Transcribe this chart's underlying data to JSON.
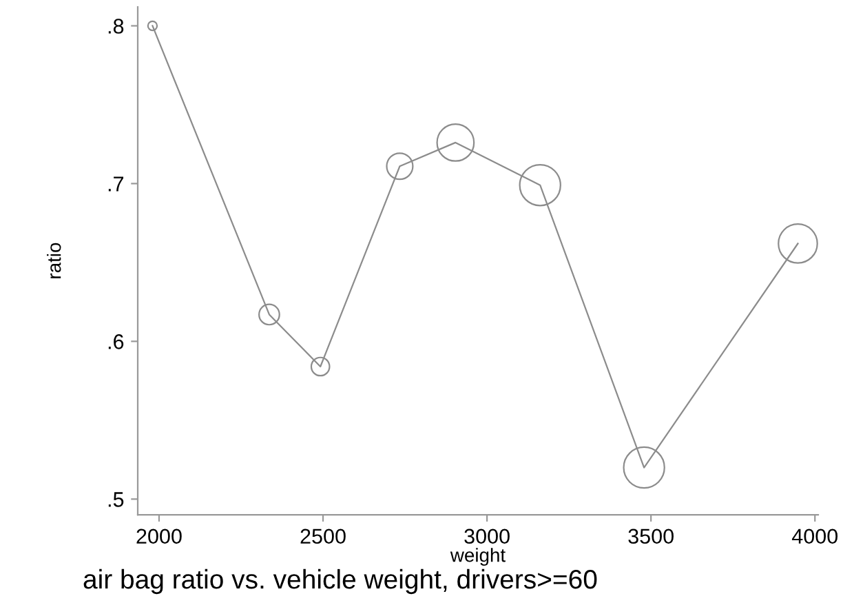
{
  "chart_data": {
    "type": "bubble",
    "title": "air bag ratio vs. vehicle weight, drivers>=60",
    "xlabel": "weight",
    "ylabel": "ratio",
    "x": [
      1980,
      2336,
      2492,
      2734,
      2904,
      3162,
      3479,
      3948
    ],
    "series": [
      {
        "type": "line",
        "color": "#8c8c8c",
        "values": [
          0.8,
          0.617,
          0.584,
          0.711,
          0.726,
          0.699,
          0.52,
          0.662
        ]
      },
      {
        "color": "#8c8c8c",
        "values": [
          0.8,
          0.617,
          0.584,
          0.711,
          0.726,
          0.699,
          0.52,
          0.662
        ],
        "sizes": [
          0.05,
          0.25,
          0.2,
          0.41,
          0.82,
          1,
          1,
          0.91
        ]
      }
    ],
    "xlim": [
      1935,
      4010
    ],
    "xticks": [
      2000,
      2500,
      3000,
      3500,
      4000
    ],
    "ylim": [
      0.49,
      0.812
    ],
    "yticks": [
      {
        "value": 0.5,
        "label": ".5"
      },
      {
        "value": 0.6,
        "label": ".6"
      },
      {
        "value": 0.7,
        "label": ".7"
      },
      {
        "value": 0.8,
        "label": ".8"
      }
    ],
    "grid": false,
    "legend": false
  }
}
